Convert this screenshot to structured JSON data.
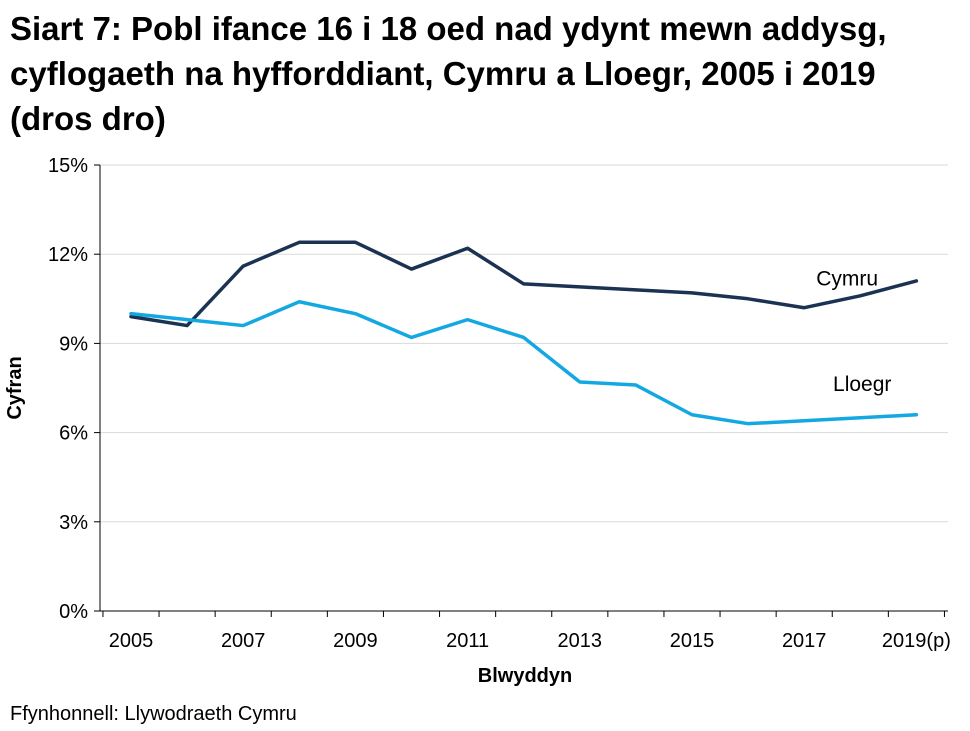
{
  "chart_data": {
    "type": "line",
    "title": "Siart 7: Pobl ifance 16 i 18 oed nad ydynt mewn addysg, cyflogaeth na hyfforddiant, Cymru a Lloegr, 2005 i 2019 (dros dro)",
    "xlabel": "Blwyddyn",
    "ylabel": "Cyfran",
    "x": [
      "2005",
      "2006",
      "2007",
      "2008",
      "2009",
      "2010",
      "2011",
      "2012",
      "2013",
      "2014",
      "2015",
      "2016",
      "2017",
      "2018",
      "2019(p)"
    ],
    "x_tick_labels": [
      "2005",
      "2007",
      "2009",
      "2011",
      "2013",
      "2015",
      "2017",
      "2019(p)"
    ],
    "y_tick_labels": [
      "0%",
      "3%",
      "6%",
      "9%",
      "12%",
      "15%"
    ],
    "ylim": [
      0,
      15
    ],
    "grid": "horizontal",
    "series": [
      {
        "name": "Cymru",
        "color": "#1b3252",
        "values": [
          9.9,
          9.6,
          11.6,
          12.4,
          12.4,
          11.5,
          12.2,
          11.0,
          10.9,
          10.8,
          10.7,
          10.5,
          10.2,
          10.6,
          11.1
        ]
      },
      {
        "name": "Lloegr",
        "color": "#14a8e3",
        "values": [
          10.0,
          9.8,
          9.6,
          10.4,
          10.0,
          9.2,
          9.8,
          9.2,
          7.7,
          7.6,
          6.6,
          6.3,
          6.4,
          6.5,
          6.6
        ]
      }
    ]
  },
  "source": "Ffynhonnell: Llywodraeth Cymru"
}
